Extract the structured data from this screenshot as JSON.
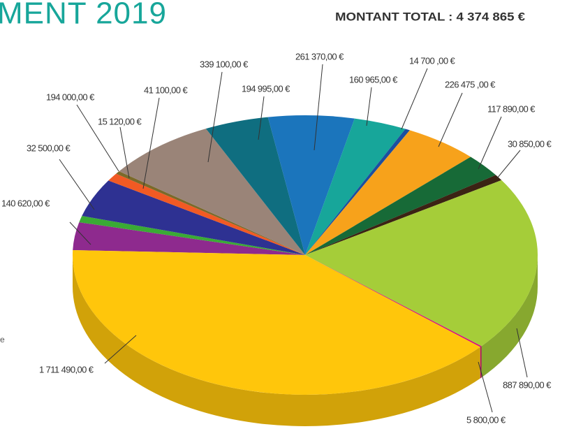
{
  "chart_data": {
    "type": "pie",
    "title": "MENT 2019",
    "subtitle": "MONTANT TOTAL : 4 374 865 €",
    "annotation": "e",
    "values": [
      140620,
      32500,
      194000,
      41100,
      15120,
      339100,
      194995,
      261370,
      160965,
      14700,
      226475,
      117890,
      30850,
      887890,
      5800,
      1711490
    ],
    "value_labels": [
      "140 620,00 €",
      "32 500,00 €",
      "194 000,00 €",
      "41 100,00 €",
      "15 120,00 €",
      "339 100,00 €",
      "194 995,00 €",
      "261 370,00 €",
      "160 965,00 €",
      "14 700 ,00 €",
      "226 475 ,00 €",
      "117 890,00 €",
      "30 850,00 €",
      "887 890,00 €",
      "5 800,00 €",
      "1 711 490,00 €"
    ],
    "colors": [
      "#8e2a8e",
      "#3aaa35",
      "#2e3192",
      "#f15a24",
      "#7a6a2a",
      "#9a8478",
      "#0f6e80",
      "#1b75bc",
      "#17a69a",
      "#1c4fa0",
      "#f7a21b",
      "#176a37",
      "#3b2314",
      "#a5cd39",
      "#d6127a",
      "#ffc60b"
    ]
  }
}
